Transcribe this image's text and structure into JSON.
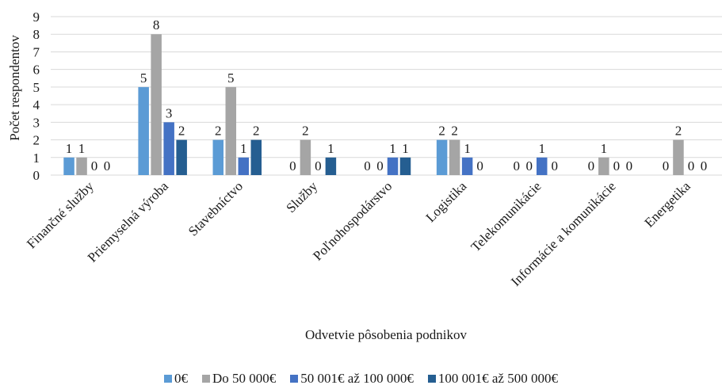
{
  "chart_data": {
    "type": "bar",
    "title": "",
    "xlabel": "Odvetvie pôsobenia podnikov",
    "ylabel": "Počet respondentov",
    "ylim": [
      0,
      9
    ],
    "yticks": [
      "0",
      "1",
      "2",
      "3",
      "4",
      "5",
      "6",
      "7",
      "8",
      "9"
    ],
    "grid": true,
    "legend_position": "bottom",
    "categories": [
      "Finančné služby",
      "Priemyselná výroba",
      "Stavebníctvo",
      "Služby",
      "Poľnohospodárstvo",
      "Logistika",
      "Telekomunikácie",
      "Informácie a komunikácie",
      "Energetika"
    ],
    "series": [
      {
        "name": "0€",
        "color": "#5b9bd5",
        "values": [
          1,
          5,
          2,
          0,
          0,
          2,
          0,
          0,
          0
        ]
      },
      {
        "name": "Do 50 000€",
        "color": "#a5a5a5",
        "values": [
          1,
          8,
          5,
          2,
          0,
          2,
          0,
          1,
          2
        ]
      },
      {
        "name": "50 001€ až 100 000€",
        "color": "#4472c4",
        "values": [
          0,
          3,
          1,
          0,
          1,
          1,
          1,
          0,
          0
        ]
      },
      {
        "name": "100 001€ až 500 000€",
        "color": "#255e91",
        "values": [
          0,
          2,
          2,
          1,
          1,
          0,
          0,
          0,
          0
        ]
      }
    ],
    "data_labels": [
      [
        "1",
        "5",
        "2",
        "0",
        "0",
        "2",
        "0",
        "0",
        "0"
      ],
      [
        "1",
        "8",
        "5",
        "2",
        "0",
        "2",
        "0",
        "1",
        "2"
      ],
      [
        "0",
        "3",
        "1",
        "0",
        "1",
        "1",
        "1",
        "0",
        "0"
      ],
      [
        "0",
        "2",
        "2",
        "1",
        "1",
        "0",
        "0",
        "0",
        "0"
      ]
    ]
  }
}
